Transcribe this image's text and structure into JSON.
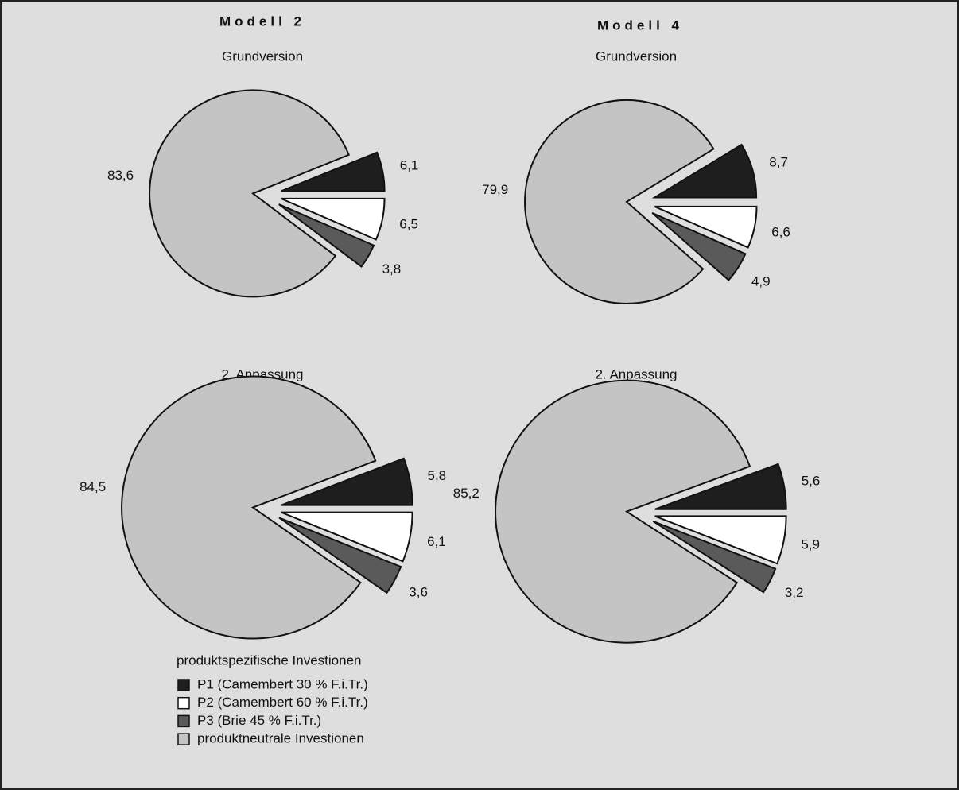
{
  "models": [
    "Modell 2",
    "Modell 4"
  ],
  "legend": {
    "title": "produktspezifische  Investionen",
    "items": [
      {
        "name": "P1 (Camembert 30 % F.i.Tr.)",
        "color": "#1e1e1e"
      },
      {
        "name": "P2 (Camembert 60 % F.i.Tr.)",
        "color": "#ffffff"
      },
      {
        "name": "P3 (Brie 45 % F.i.Tr.)",
        "color": "#5a5a5a"
      },
      {
        "name": "produktneutrale Investionen",
        "color": "#c4c4c4"
      }
    ]
  },
  "chart_data": [
    {
      "type": "pie",
      "subtitle": "Grundversion",
      "values": [
        6.1,
        6.5,
        3.8,
        83.6
      ],
      "value_labels": [
        "6,1",
        "6,5",
        "3,8",
        "83,6"
      ]
    },
    {
      "type": "pie",
      "subtitle": "Grundversion",
      "values": [
        8.7,
        6.6,
        4.9,
        79.9
      ],
      "value_labels": [
        "8,7",
        "6,6",
        "4,9",
        "79,9"
      ]
    },
    {
      "type": "pie",
      "subtitle": "2. Anpassung",
      "values": [
        5.8,
        6.1,
        3.6,
        84.5
      ],
      "value_labels": [
        "5,8",
        "6,1",
        "3,6",
        "84,5"
      ]
    },
    {
      "type": "pie",
      "subtitle": "2. Anpassung",
      "values": [
        5.6,
        5.9,
        3.2,
        85.2
      ],
      "value_labels": [
        "5,6",
        "5,9",
        "3,2",
        "85,2"
      ]
    }
  ]
}
